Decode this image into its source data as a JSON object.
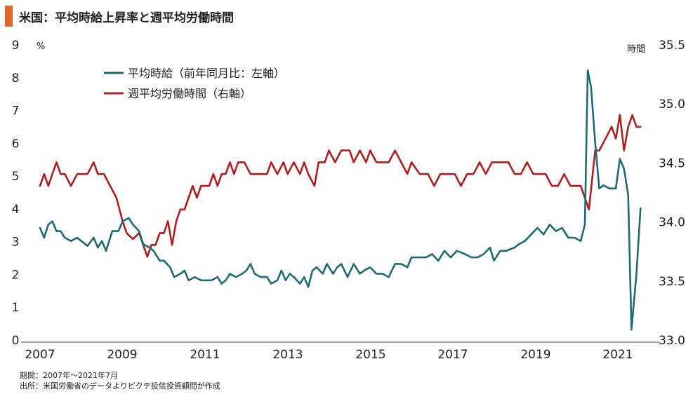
{
  "title": "米国：平均時給上昇率と週平均労働時間",
  "colors": {
    "accent": "#E0662E",
    "wage": "#1F6B73",
    "hours": "#B01E1E",
    "text": "#222222"
  },
  "footer": {
    "period": "期間：2007年～2021年7月",
    "source": "出所：米国労働省のデータよりピクテ投信投資顧問が作成"
  },
  "chart_data": {
    "type": "line",
    "title": "米国：平均時給上昇率と週平均労働時間",
    "x_range": [
      2007,
      2021.58
    ],
    "x_ticks": [
      "2007",
      "2009",
      "2011",
      "2013",
      "2015",
      "2017",
      "2019",
      "2021"
    ],
    "left_axis": {
      "unit": "%",
      "range": [
        0,
        9
      ],
      "ticks": [
        "0",
        "1",
        "2",
        "3",
        "4",
        "5",
        "6",
        "7",
        "8",
        "9"
      ]
    },
    "right_axis": {
      "unit": "時間",
      "range": [
        33.0,
        35.5
      ],
      "ticks": [
        "33.0",
        "33.5",
        "34.0",
        "34.5",
        "35.0",
        "35.5"
      ]
    },
    "grid": false,
    "legend_position": "top-left",
    "series": [
      {
        "name": "平均時給（前年同月比：左軸）",
        "axis": "left",
        "points": [
          [
            2007.0,
            3.4
          ],
          [
            2007.1,
            3.1
          ],
          [
            2007.2,
            3.5
          ],
          [
            2007.3,
            3.6
          ],
          [
            2007.4,
            3.3
          ],
          [
            2007.5,
            3.3
          ],
          [
            2007.6,
            3.1
          ],
          [
            2007.75,
            3.0
          ],
          [
            2007.9,
            3.1
          ],
          [
            2008.0,
            3.0
          ],
          [
            2008.15,
            2.85
          ],
          [
            2008.3,
            3.1
          ],
          [
            2008.4,
            2.8
          ],
          [
            2008.5,
            3.0
          ],
          [
            2008.6,
            2.7
          ],
          [
            2008.75,
            3.3
          ],
          [
            2008.9,
            3.3
          ],
          [
            2009.0,
            3.6
          ],
          [
            2009.15,
            3.7
          ],
          [
            2009.25,
            3.5
          ],
          [
            2009.4,
            3.3
          ],
          [
            2009.5,
            2.9
          ],
          [
            2009.65,
            2.8
          ],
          [
            2009.75,
            2.7
          ],
          [
            2009.9,
            2.4
          ],
          [
            2010.0,
            2.4
          ],
          [
            2010.15,
            2.2
          ],
          [
            2010.25,
            1.9
          ],
          [
            2010.4,
            2.0
          ],
          [
            2010.5,
            2.1
          ],
          [
            2010.6,
            1.8
          ],
          [
            2010.75,
            1.9
          ],
          [
            2010.9,
            1.8
          ],
          [
            2011.0,
            1.8
          ],
          [
            2011.15,
            1.8
          ],
          [
            2011.3,
            1.9
          ],
          [
            2011.4,
            1.7
          ],
          [
            2011.5,
            1.8
          ],
          [
            2011.6,
            2.0
          ],
          [
            2011.75,
            1.9
          ],
          [
            2011.9,
            2.0
          ],
          [
            2012.0,
            2.1
          ],
          [
            2012.1,
            2.3
          ],
          [
            2012.2,
            2.0
          ],
          [
            2012.35,
            1.9
          ],
          [
            2012.5,
            1.9
          ],
          [
            2012.6,
            1.7
          ],
          [
            2012.75,
            1.8
          ],
          [
            2012.85,
            2.1
          ],
          [
            2012.95,
            1.8
          ],
          [
            2013.05,
            2.0
          ],
          [
            2013.15,
            1.9
          ],
          [
            2013.3,
            1.7
          ],
          [
            2013.4,
            1.9
          ],
          [
            2013.5,
            1.6
          ],
          [
            2013.6,
            2.1
          ],
          [
            2013.7,
            2.2
          ],
          [
            2013.85,
            2.0
          ],
          [
            2013.95,
            2.3
          ],
          [
            2014.1,
            2.0
          ],
          [
            2014.2,
            2.2
          ],
          [
            2014.3,
            2.3
          ],
          [
            2014.45,
            1.9
          ],
          [
            2014.6,
            2.3
          ],
          [
            2014.75,
            2.0
          ],
          [
            2014.85,
            2.1
          ],
          [
            2015.0,
            2.2
          ],
          [
            2015.15,
            2.0
          ],
          [
            2015.3,
            2.0
          ],
          [
            2015.45,
            1.9
          ],
          [
            2015.6,
            2.3
          ],
          [
            2015.75,
            2.3
          ],
          [
            2015.9,
            2.2
          ],
          [
            2016.0,
            2.5
          ],
          [
            2016.2,
            2.5
          ],
          [
            2016.35,
            2.5
          ],
          [
            2016.5,
            2.6
          ],
          [
            2016.65,
            2.4
          ],
          [
            2016.8,
            2.7
          ],
          [
            2016.95,
            2.5
          ],
          [
            2017.1,
            2.7
          ],
          [
            2017.3,
            2.6
          ],
          [
            2017.45,
            2.5
          ],
          [
            2017.6,
            2.5
          ],
          [
            2017.75,
            2.6
          ],
          [
            2017.9,
            2.8
          ],
          [
            2018.0,
            2.4
          ],
          [
            2018.15,
            2.7
          ],
          [
            2018.3,
            2.7
          ],
          [
            2018.5,
            2.8
          ],
          [
            2018.6,
            2.9
          ],
          [
            2018.75,
            3.0
          ],
          [
            2018.9,
            3.2
          ],
          [
            2019.05,
            3.4
          ],
          [
            2019.2,
            3.2
          ],
          [
            2019.35,
            3.5
          ],
          [
            2019.5,
            3.3
          ],
          [
            2019.65,
            3.4
          ],
          [
            2019.8,
            3.1
          ],
          [
            2019.95,
            3.1
          ],
          [
            2020.1,
            3.0
          ],
          [
            2020.2,
            3.5
          ],
          [
            2020.27,
            8.2
          ],
          [
            2020.35,
            7.7
          ],
          [
            2020.45,
            6.0
          ],
          [
            2020.55,
            4.6
          ],
          [
            2020.65,
            4.7
          ],
          [
            2020.8,
            4.6
          ],
          [
            2020.95,
            4.6
          ],
          [
            2021.05,
            5.5
          ],
          [
            2021.15,
            5.2
          ],
          [
            2021.25,
            4.4
          ],
          [
            2021.33,
            0.3
          ],
          [
            2021.45,
            2.0
          ],
          [
            2021.55,
            4.0
          ]
        ]
      },
      {
        "name": "週平均労働時間（右軸）",
        "axis": "right",
        "points": [
          [
            2007.0,
            34.3
          ],
          [
            2007.1,
            34.4
          ],
          [
            2007.2,
            34.3
          ],
          [
            2007.3,
            34.4
          ],
          [
            2007.4,
            34.5
          ],
          [
            2007.5,
            34.4
          ],
          [
            2007.6,
            34.4
          ],
          [
            2007.75,
            34.3
          ],
          [
            2007.9,
            34.4
          ],
          [
            2008.0,
            34.4
          ],
          [
            2008.15,
            34.4
          ],
          [
            2008.3,
            34.5
          ],
          [
            2008.4,
            34.4
          ],
          [
            2008.55,
            34.4
          ],
          [
            2008.7,
            34.3
          ],
          [
            2008.85,
            34.2
          ],
          [
            2009.0,
            34.0
          ],
          [
            2009.1,
            33.9
          ],
          [
            2009.25,
            33.85
          ],
          [
            2009.4,
            33.9
          ],
          [
            2009.5,
            33.8
          ],
          [
            2009.6,
            33.7
          ],
          [
            2009.7,
            33.8
          ],
          [
            2009.8,
            33.8
          ],
          [
            2009.9,
            33.9
          ],
          [
            2010.0,
            33.9
          ],
          [
            2010.1,
            34.0
          ],
          [
            2010.2,
            33.8
          ],
          [
            2010.3,
            34.0
          ],
          [
            2010.4,
            34.1
          ],
          [
            2010.5,
            34.1
          ],
          [
            2010.6,
            34.2
          ],
          [
            2010.7,
            34.3
          ],
          [
            2010.8,
            34.2
          ],
          [
            2010.9,
            34.3
          ],
          [
            2011.0,
            34.3
          ],
          [
            2011.1,
            34.3
          ],
          [
            2011.2,
            34.4
          ],
          [
            2011.3,
            34.3
          ],
          [
            2011.4,
            34.4
          ],
          [
            2011.5,
            34.4
          ],
          [
            2011.6,
            34.5
          ],
          [
            2011.7,
            34.4
          ],
          [
            2011.8,
            34.5
          ],
          [
            2011.95,
            34.5
          ],
          [
            2012.1,
            34.4
          ],
          [
            2012.3,
            34.4
          ],
          [
            2012.5,
            34.4
          ],
          [
            2012.6,
            34.5
          ],
          [
            2012.75,
            34.4
          ],
          [
            2012.9,
            34.5
          ],
          [
            2013.0,
            34.4
          ],
          [
            2013.15,
            34.5
          ],
          [
            2013.3,
            34.4
          ],
          [
            2013.4,
            34.5
          ],
          [
            2013.5,
            34.4
          ],
          [
            2013.65,
            34.3
          ],
          [
            2013.75,
            34.5
          ],
          [
            2013.9,
            34.5
          ],
          [
            2014.0,
            34.6
          ],
          [
            2014.15,
            34.5
          ],
          [
            2014.3,
            34.6
          ],
          [
            2014.5,
            34.6
          ],
          [
            2014.6,
            34.5
          ],
          [
            2014.75,
            34.6
          ],
          [
            2014.9,
            34.5
          ],
          [
            2015.0,
            34.6
          ],
          [
            2015.15,
            34.5
          ],
          [
            2015.3,
            34.5
          ],
          [
            2015.45,
            34.5
          ],
          [
            2015.6,
            34.6
          ],
          [
            2015.75,
            34.5
          ],
          [
            2015.9,
            34.4
          ],
          [
            2016.0,
            34.5
          ],
          [
            2016.2,
            34.4
          ],
          [
            2016.4,
            34.4
          ],
          [
            2016.55,
            34.3
          ],
          [
            2016.7,
            34.4
          ],
          [
            2016.9,
            34.4
          ],
          [
            2017.05,
            34.4
          ],
          [
            2017.2,
            34.3
          ],
          [
            2017.35,
            34.4
          ],
          [
            2017.5,
            34.4
          ],
          [
            2017.65,
            34.5
          ],
          [
            2017.8,
            34.4
          ],
          [
            2017.95,
            34.5
          ],
          [
            2018.15,
            34.5
          ],
          [
            2018.35,
            34.5
          ],
          [
            2018.5,
            34.4
          ],
          [
            2018.65,
            34.4
          ],
          [
            2018.8,
            34.5
          ],
          [
            2018.95,
            34.4
          ],
          [
            2019.1,
            34.4
          ],
          [
            2019.25,
            34.4
          ],
          [
            2019.4,
            34.3
          ],
          [
            2019.55,
            34.3
          ],
          [
            2019.7,
            34.4
          ],
          [
            2019.85,
            34.3
          ],
          [
            2020.0,
            34.3
          ],
          [
            2020.1,
            34.3
          ],
          [
            2020.2,
            34.2
          ],
          [
            2020.3,
            34.1
          ],
          [
            2020.45,
            34.6
          ],
          [
            2020.55,
            34.6
          ],
          [
            2020.7,
            34.7
          ],
          [
            2020.85,
            34.8
          ],
          [
            2020.95,
            34.7
          ],
          [
            2021.05,
            34.9
          ],
          [
            2021.15,
            34.6
          ],
          [
            2021.25,
            34.8
          ],
          [
            2021.35,
            34.9
          ],
          [
            2021.45,
            34.8
          ],
          [
            2021.55,
            34.8
          ]
        ]
      }
    ]
  }
}
